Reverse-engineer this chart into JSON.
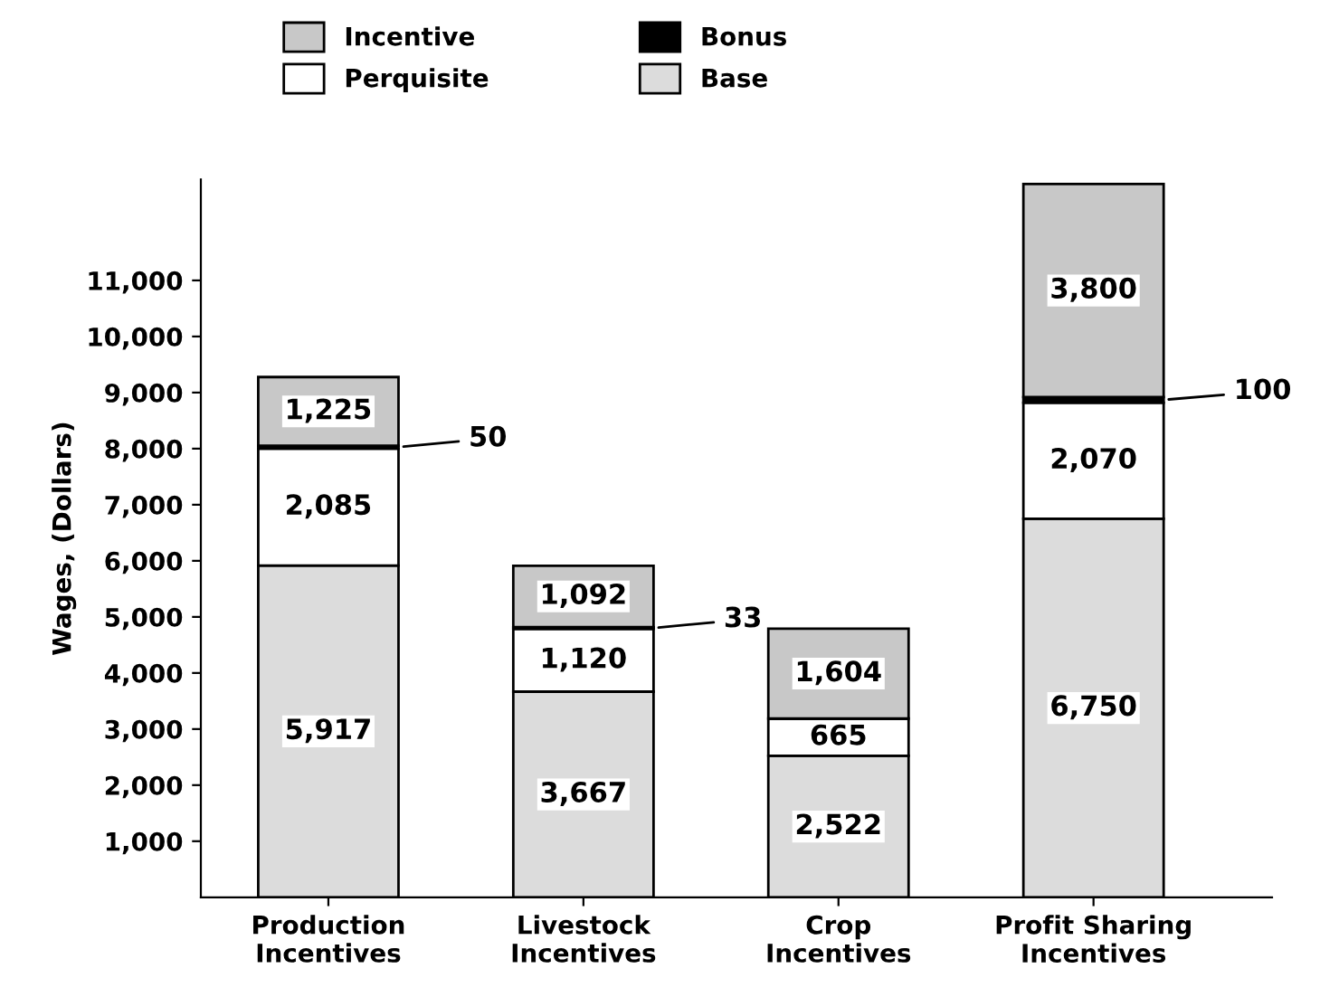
{
  "chart_data": {
    "type": "bar",
    "stacked": true,
    "ylabel": "Wages, (Dollars)",
    "categories": [
      "Production\nIncentives",
      "Livestock\nIncentives",
      "Crop\nIncentives",
      "Profit Sharing\nIncentives"
    ],
    "series": [
      {
        "name": "Base",
        "color": "#dcdcdc",
        "values": [
          5917,
          3667,
          2522,
          6750
        ],
        "value_labels": [
          "5,917",
          "3,667",
          "2,522",
          "6,750"
        ]
      },
      {
        "name": "Perquisite",
        "color": "#ffffff",
        "values": [
          2085,
          1120,
          665,
          2070
        ],
        "value_labels": [
          "2,085",
          "1,120",
          "665",
          "2,070"
        ]
      },
      {
        "name": "Bonus",
        "color": "#000000",
        "values": [
          50,
          33,
          null,
          100
        ],
        "value_labels": [
          "50",
          "33",
          null,
          "100"
        ]
      },
      {
        "name": "Incentive",
        "color": "#c8c8c8",
        "values": [
          1225,
          1092,
          1604,
          3800
        ],
        "value_labels": [
          "1,225",
          "1,092",
          "1,604",
          "3,800"
        ]
      }
    ],
    "ylim": [
      0,
      12800
    ],
    "yticks": [
      {
        "value": 1000,
        "label": "1,000"
      },
      {
        "value": 2000,
        "label": "2,000"
      },
      {
        "value": 3000,
        "label": "3,000"
      },
      {
        "value": 4000,
        "label": "4,000"
      },
      {
        "value": 5000,
        "label": "5,000"
      },
      {
        "value": 6000,
        "label": "6,000"
      },
      {
        "value": 7000,
        "label": "7,000"
      },
      {
        "value": 8000,
        "label": "8,000"
      },
      {
        "value": 9000,
        "label": "9,000"
      },
      {
        "value": 10000,
        "label": "10,000"
      },
      {
        "value": 11000,
        "label": "11,000"
      }
    ],
    "grid": false,
    "legend": "top"
  }
}
